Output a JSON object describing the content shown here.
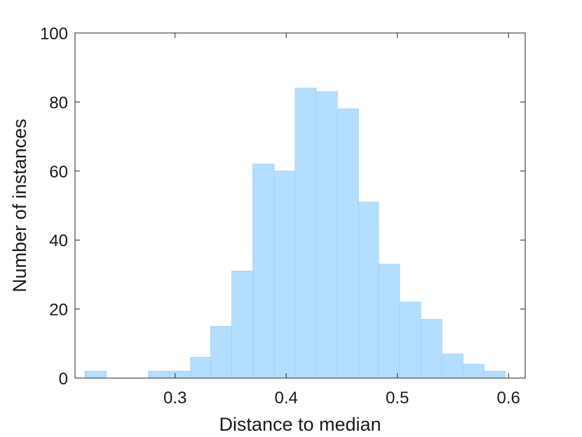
{
  "chart_data": {
    "type": "bar",
    "title": "",
    "xlabel": "Distance to median",
    "ylabel": "Number of instances",
    "xlim": [
      0.21,
      0.615
    ],
    "ylim": [
      0,
      100
    ],
    "x_ticks": [
      0.3,
      0.4,
      0.5,
      0.6
    ],
    "x_tick_labels": [
      "0.3",
      "0.4",
      "0.5",
      "0.6"
    ],
    "y_ticks": [
      0,
      20,
      40,
      60,
      80,
      100
    ],
    "y_tick_labels": [
      "0",
      "20",
      "40",
      "60",
      "80",
      "100"
    ],
    "grid": false,
    "bar_color": "#b3deff",
    "bar_edge_color": "#9ccff4",
    "bins": [
      {
        "x0": 0.219,
        "x1": 0.238,
        "count": 2
      },
      {
        "x0": 0.238,
        "x1": 0.257,
        "count": 0
      },
      {
        "x0": 0.257,
        "x1": 0.276,
        "count": 0
      },
      {
        "x0": 0.276,
        "x1": 0.295,
        "count": 2
      },
      {
        "x0": 0.295,
        "x1": 0.314,
        "count": 2
      },
      {
        "x0": 0.314,
        "x1": 0.332,
        "count": 6
      },
      {
        "x0": 0.332,
        "x1": 0.351,
        "count": 15
      },
      {
        "x0": 0.351,
        "x1": 0.37,
        "count": 31
      },
      {
        "x0": 0.37,
        "x1": 0.389,
        "count": 62
      },
      {
        "x0": 0.389,
        "x1": 0.408,
        "count": 60
      },
      {
        "x0": 0.408,
        "x1": 0.427,
        "count": 84
      },
      {
        "x0": 0.427,
        "x1": 0.446,
        "count": 83
      },
      {
        "x0": 0.446,
        "x1": 0.465,
        "count": 78
      },
      {
        "x0": 0.465,
        "x1": 0.483,
        "count": 51
      },
      {
        "x0": 0.483,
        "x1": 0.502,
        "count": 33
      },
      {
        "x0": 0.502,
        "x1": 0.521,
        "count": 22
      },
      {
        "x0": 0.521,
        "x1": 0.54,
        "count": 17
      },
      {
        "x0": 0.54,
        "x1": 0.559,
        "count": 7
      },
      {
        "x0": 0.559,
        "x1": 0.578,
        "count": 4
      },
      {
        "x0": 0.578,
        "x1": 0.597,
        "count": 2
      }
    ]
  }
}
